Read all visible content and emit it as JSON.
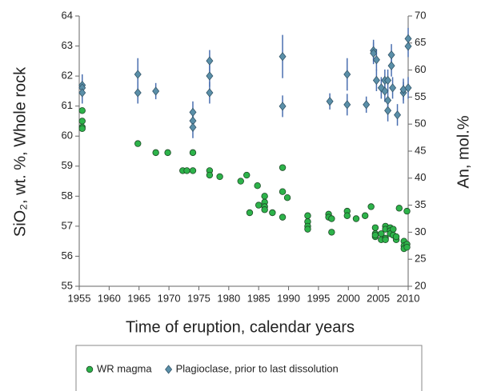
{
  "chart_data": {
    "type": "scatter",
    "xlabel": "Time of eruption, calendar years",
    "ylabel": "SiO₂, wt. %, Whole rock",
    "y2label": "An, mol.%",
    "xlim": [
      1955,
      2010
    ],
    "xticks": [
      1955,
      1960,
      1965,
      1970,
      1975,
      1980,
      1985,
      1990,
      1995,
      2000,
      2005,
      2010
    ],
    "ylim": [
      55,
      64
    ],
    "yticks": [
      55,
      56,
      57,
      58,
      59,
      60,
      61,
      62,
      63,
      64
    ],
    "y2lim": [
      20,
      70
    ],
    "y2ticks": [
      20,
      25,
      30,
      35,
      40,
      45,
      50,
      55,
      60,
      65,
      70
    ],
    "legend": "bottom",
    "series": [
      {
        "name": "WR magma",
        "color": "#2db34a",
        "marker": "circle",
        "x": [
          1955.5,
          1955.5,
          1955.5,
          1955.5,
          1964.8,
          1967.8,
          1969.8,
          1972.3,
          1973,
          1974,
          1974,
          1976.8,
          1976.8,
          1978.5,
          1982,
          1983,
          1983.5,
          1984.8,
          1985,
          1986,
          1986,
          1986,
          1986,
          1987.3,
          1989,
          1989,
          1989,
          1989.8,
          1993.2,
          1993.2,
          1993.2,
          1993.2,
          1996.7,
          1996.7,
          1997.2,
          1997.2,
          1999.8,
          1999.8,
          2001.3,
          2002.8,
          2003.8,
          2004.5,
          2004.5,
          2004.5,
          2004.5,
          2005.5,
          2005.5,
          2006.2,
          2006.2,
          2006.2,
          2006.2,
          2007,
          2007,
          2007,
          2007.5,
          2007.5,
          2008,
          2008,
          2008.5,
          2009.3,
          2009.3,
          2009.3,
          2009.8,
          2009.8,
          2009.8
        ],
        "values": [
          60.85,
          60.5,
          60.3,
          60.25,
          59.75,
          59.45,
          59.45,
          58.85,
          58.85,
          59.45,
          58.85,
          58.85,
          58.7,
          58.65,
          58.5,
          58.7,
          57.45,
          58.35,
          57.7,
          58.0,
          57.8,
          57.65,
          57.55,
          57.45,
          58.95,
          58.15,
          57.3,
          57.95,
          57.35,
          57.15,
          57.0,
          56.9,
          57.4,
          57.3,
          57.25,
          56.8,
          57.5,
          57.35,
          57.25,
          57.35,
          57.65,
          56.95,
          56.75,
          56.65,
          56.7,
          56.75,
          56.55,
          57.0,
          56.9,
          56.6,
          56.55,
          56.95,
          56.85,
          56.75,
          56.9,
          56.7,
          56.55,
          56.65,
          57.6,
          56.5,
          56.35,
          56.25,
          57.5,
          56.4,
          56.3
        ]
      },
      {
        "name": "Plagioclase, prior to last dissolution",
        "color": "#5a8fa8",
        "error_color": "#4a6fb0",
        "marker": "diamond",
        "axis": "y2",
        "x": [
          1955.5,
          1955.5,
          1955.5,
          1964.8,
          1964.8,
          1967.8,
          1974,
          1974,
          1974,
          1976.8,
          1976.8,
          1976.8,
          1989,
          1989,
          1996.9,
          1999.8,
          1999.8,
          2003,
          2004.2,
          2004.2,
          2004.7,
          2004.7,
          2005.5,
          2006.1,
          2006.1,
          2006.6,
          2006.6,
          2006.6,
          2007.2,
          2007.2,
          2007.4,
          2008.2,
          2009.2,
          2009.2,
          2010,
          2010,
          2010
        ],
        "values": [
          57.2,
          56.7,
          55.8,
          59.2,
          55.8,
          56.1,
          52.2,
          50.6,
          49.4,
          61.7,
          58.9,
          55.8,
          62.5,
          53.3,
          54.2,
          59.2,
          53.6,
          53.6,
          63.6,
          63.1,
          61.9,
          58.1,
          56.7,
          58.1,
          56.1,
          58.1,
          52.5,
          54.4,
          62.8,
          60.8,
          56.7,
          51.7,
          55.8,
          56.4,
          65.8,
          64.4,
          56.7
        ],
        "errors": [
          2,
          2,
          2,
          3,
          2,
          1.5,
          2,
          2,
          2,
          2,
          2,
          2,
          4,
          2,
          1.5,
          3,
          2,
          1.5,
          2,
          2,
          2,
          2,
          2,
          2,
          2,
          2,
          2,
          2,
          2,
          2,
          2,
          2,
          2,
          2,
          2,
          2,
          2
        ]
      }
    ]
  }
}
